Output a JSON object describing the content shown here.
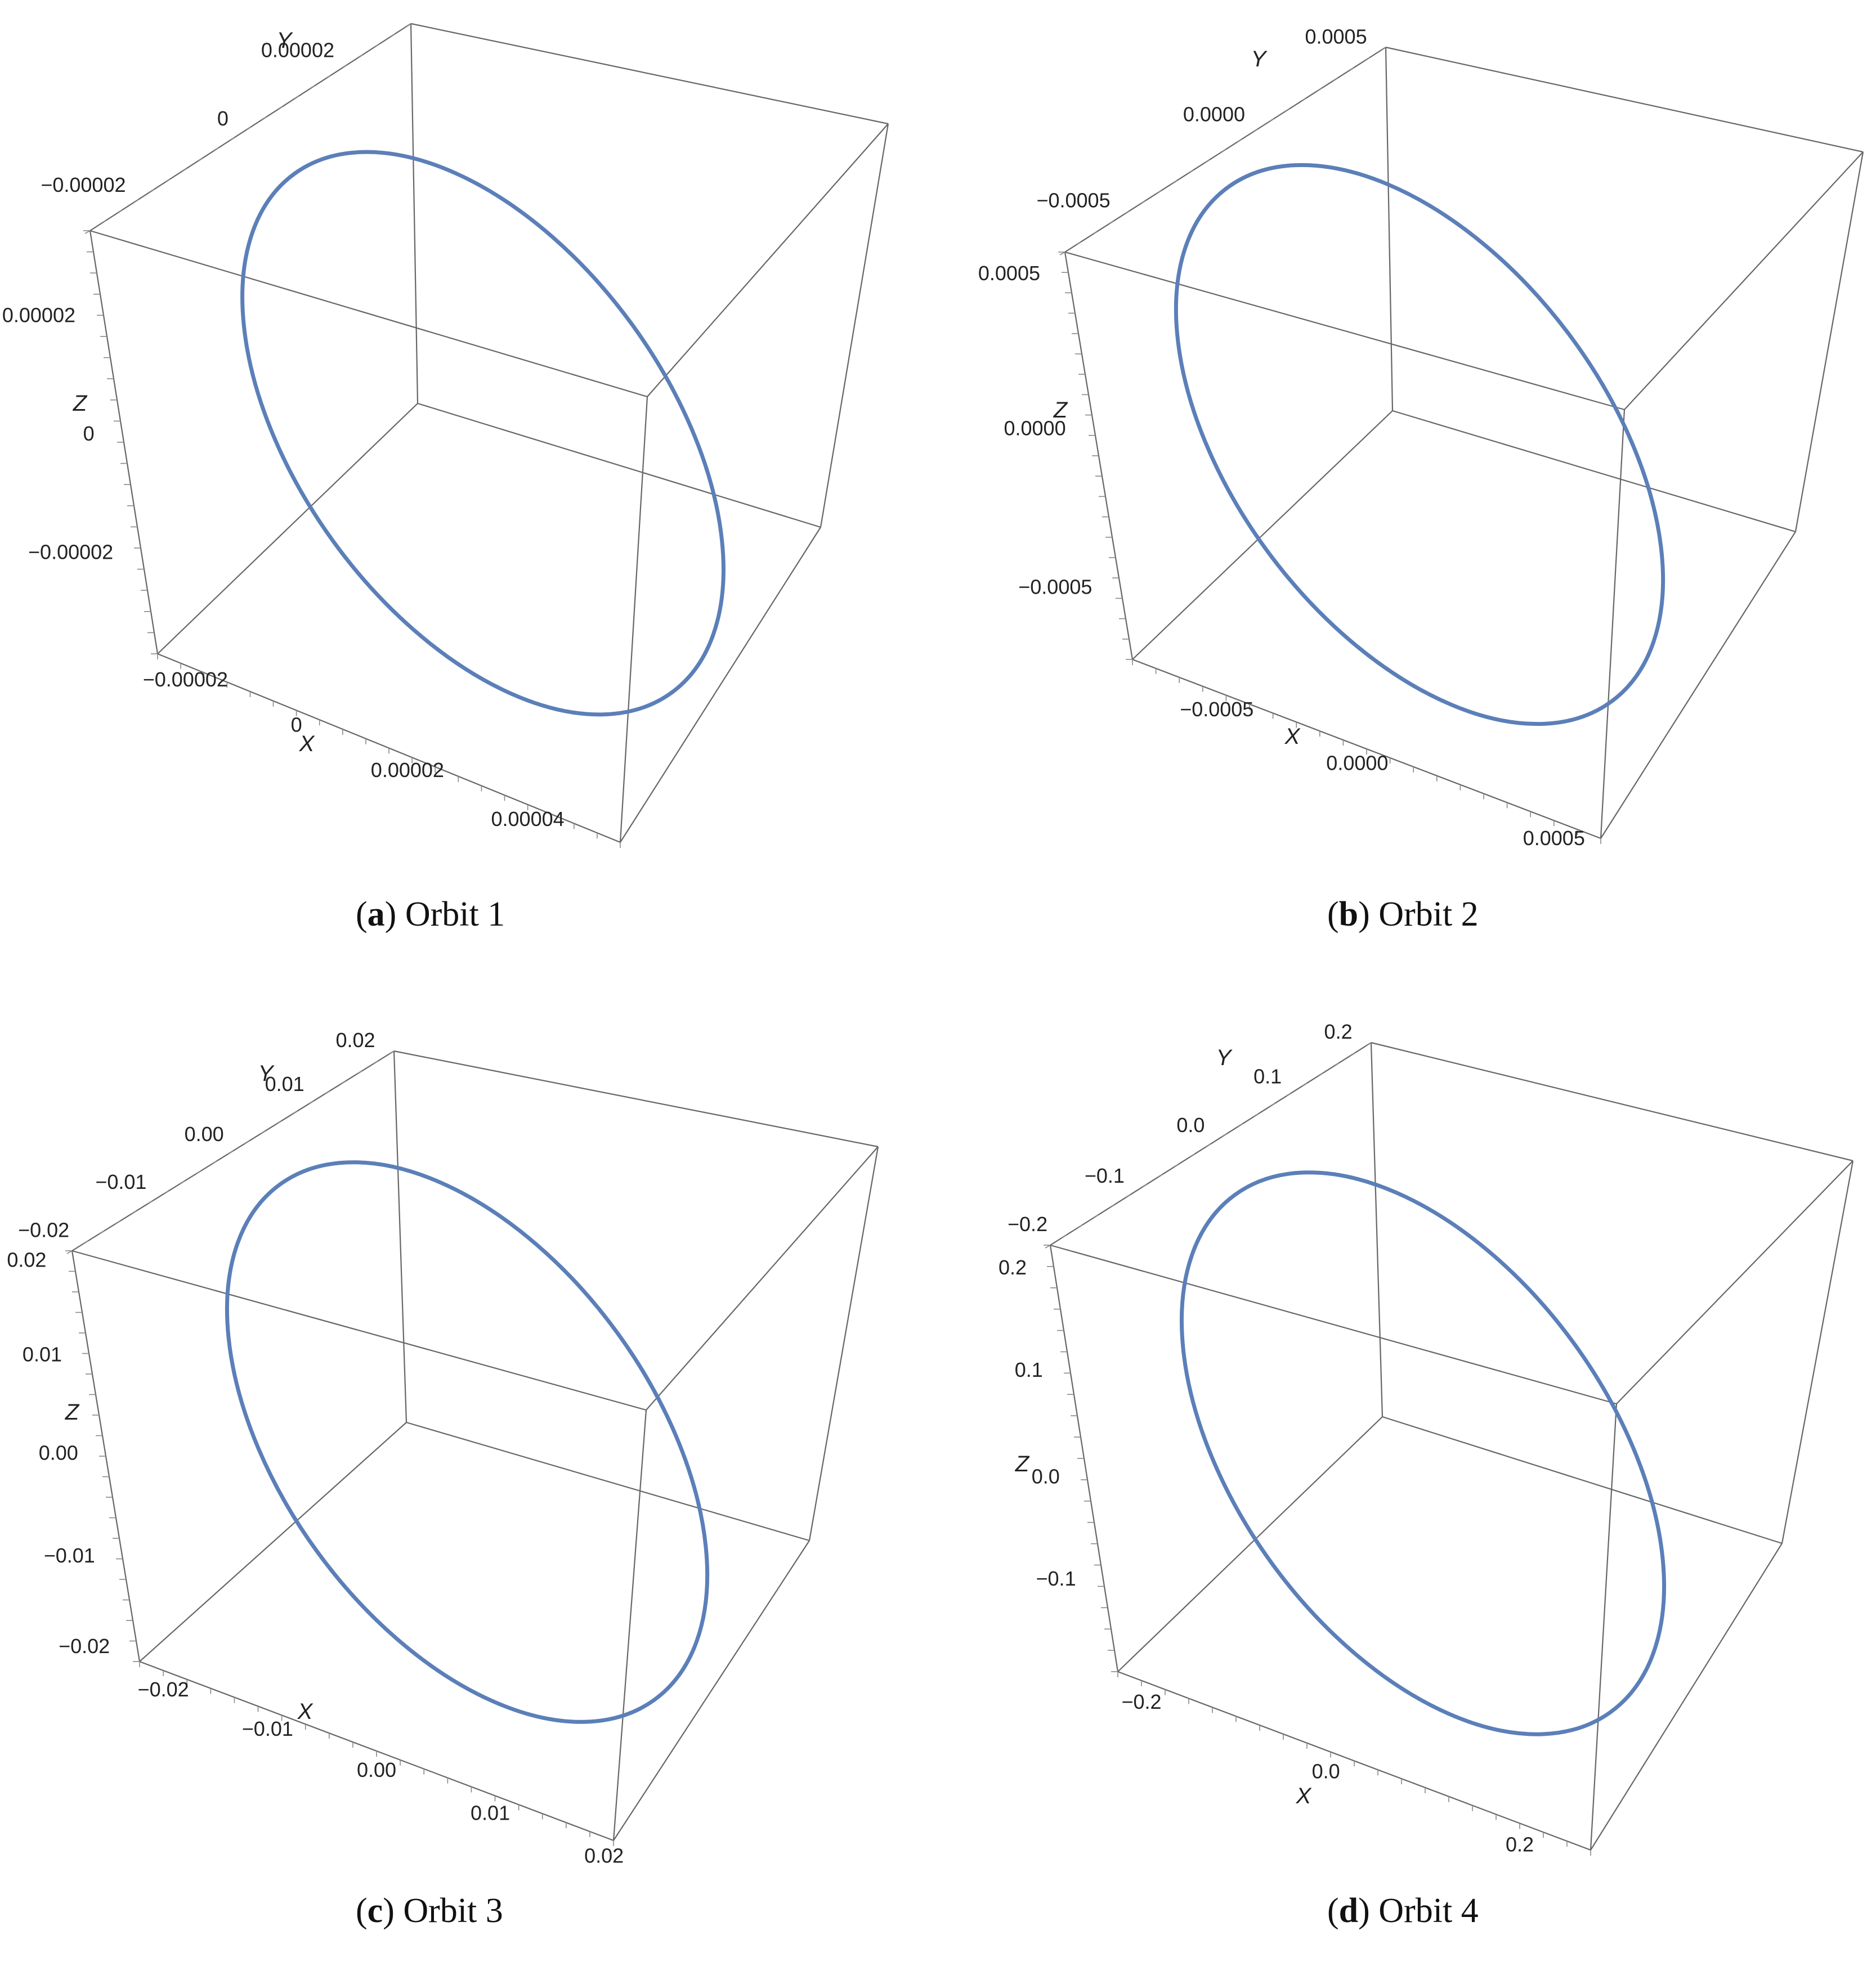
{
  "figure": {
    "curve_color": "#5b7fb8",
    "box_color": "#666666",
    "tick_color": "#888888"
  },
  "chart_data": [
    {
      "type": "line",
      "subtype": "3d-orbit",
      "caption_letter": "a",
      "caption_text": "Orbit 1",
      "axes": {
        "x": {
          "label": "X",
          "ticks": [
            "−0.00002",
            "0",
            "0.00002",
            "0.00004"
          ]
        },
        "y": {
          "label": "Y",
          "ticks": [
            "−0.00002",
            "0",
            "0.00002"
          ]
        },
        "z": {
          "label": "Z",
          "ticks": [
            "0.00002",
            "0",
            "−0.00002"
          ]
        }
      },
      "curve": "closed elliptical orbit"
    },
    {
      "type": "line",
      "subtype": "3d-orbit",
      "caption_letter": "b",
      "caption_text": "Orbit 2",
      "axes": {
        "x": {
          "label": "X",
          "ticks": [
            "−0.0005",
            "0.0000",
            "0.0005"
          ]
        },
        "y": {
          "label": "Y",
          "ticks": [
            "−0.0005",
            "0.0000",
            "0.0005"
          ]
        },
        "z": {
          "label": "Z",
          "ticks": [
            "0.0005",
            "0.0000",
            "−0.0005"
          ]
        }
      },
      "curve": "closed elliptical orbit"
    },
    {
      "type": "line",
      "subtype": "3d-orbit",
      "caption_letter": "c",
      "caption_text": "Orbit 3",
      "axes": {
        "x": {
          "label": "X",
          "ticks": [
            "−0.02",
            "−0.01",
            "0.00",
            "0.01",
            "0.02"
          ]
        },
        "y": {
          "label": "Y",
          "ticks": [
            "−0.02",
            "−0.01",
            "0.00",
            "0.01",
            "0.02"
          ]
        },
        "z": {
          "label": "Z",
          "ticks": [
            "0.02",
            "0.01",
            "0.00",
            "−0.01",
            "−0.02"
          ]
        }
      },
      "curve": "closed elliptical orbit"
    },
    {
      "type": "line",
      "subtype": "3d-orbit",
      "caption_letter": "d",
      "caption_text": "Orbit 4",
      "axes": {
        "x": {
          "label": "X",
          "ticks": [
            "−0.2",
            "0.0",
            "0.2"
          ]
        },
        "y": {
          "label": "Y",
          "ticks": [
            "−0.2",
            "−0.1",
            "0.0",
            "0.1",
            "0.2"
          ]
        },
        "z": {
          "label": "Z",
          "ticks": [
            "0.2",
            "0.1",
            "0.0",
            "−0.1"
          ]
        }
      },
      "curve": "closed elliptical orbit"
    }
  ]
}
